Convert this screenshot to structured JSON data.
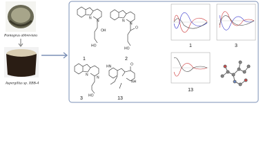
{
  "source": {
    "organism": "Pantagrus abbreviata",
    "fungus": "Aspergillus sp. XBB-4"
  },
  "compounds": [
    {
      "label": "1",
      "atoms": [
        "N",
        "N",
        "OH",
        "HO"
      ]
    },
    {
      "label": "2",
      "atoms": [
        "N",
        "N",
        "O",
        "HO"
      ]
    },
    {
      "label": "3",
      "atoms": [
        "N",
        "N",
        "HO"
      ]
    },
    {
      "label": "13",
      "atoms": [
        "HN",
        "NH",
        "O"
      ]
    }
  ],
  "cd_spectra": [
    {
      "label": "1"
    },
    {
      "label": "3"
    },
    {
      "label": "13"
    }
  ]
}
